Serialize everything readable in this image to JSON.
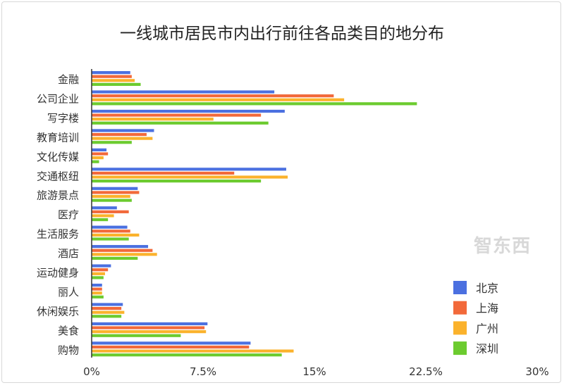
{
  "chart_data": {
    "type": "bar",
    "orientation": "horizontal",
    "title": "一线城市居民市内出行前往各品类目的地分布",
    "categories": [
      "金融",
      "公司企业",
      "写字楼",
      "教育培训",
      "文化传媒",
      "交通枢纽",
      "旅游景点",
      "医疗",
      "生活服务",
      "酒店",
      "运动健身",
      "丽人",
      "休闲娱乐",
      "美食",
      "购物"
    ],
    "series": [
      {
        "name": "北京",
        "color": "#4b70e0",
        "values": [
          2.6,
          12.3,
          13.0,
          4.2,
          1.0,
          13.1,
          3.1,
          1.7,
          2.4,
          3.8,
          1.3,
          0.7,
          2.1,
          7.8,
          10.7
        ]
      },
      {
        "name": "上海",
        "color": "#f2693a",
        "values": [
          2.7,
          16.3,
          11.4,
          3.7,
          1.1,
          9.6,
          3.2,
          2.5,
          2.6,
          4.1,
          1.1,
          0.7,
          2.0,
          7.6,
          10.6
        ]
      },
      {
        "name": "广州",
        "color": "#fbb22c",
        "values": [
          2.9,
          17.0,
          8.2,
          4.1,
          0.8,
          13.2,
          2.6,
          1.5,
          3.2,
          4.4,
          0.9,
          0.7,
          2.2,
          7.7,
          13.6
        ]
      },
      {
        "name": "深圳",
        "color": "#6ccb2f",
        "values": [
          3.3,
          21.9,
          11.9,
          2.7,
          0.5,
          11.4,
          2.7,
          1.1,
          2.5,
          3.1,
          0.8,
          0.8,
          2.0,
          6.0,
          12.8
        ]
      }
    ],
    "xticks": [
      "0%",
      "7.5%",
      "15%",
      "22.5%",
      "30%"
    ],
    "xlim": [
      0,
      30
    ],
    "grid": false,
    "legend": "bottom-right",
    "watermark": "智东西"
  }
}
